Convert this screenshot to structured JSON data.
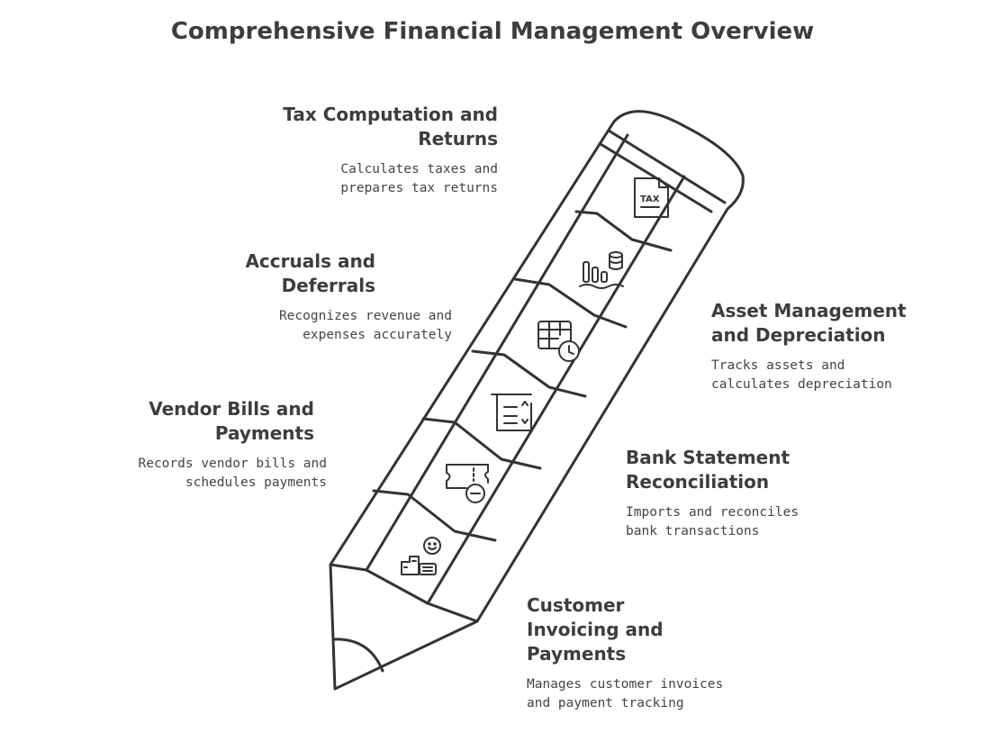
{
  "title": "Comprehensive Financial Management Overview",
  "items": [
    {
      "heading": "Tax Computation and Returns",
      "description": "Calculates taxes and prepares tax returns",
      "icon": "tax-document-icon"
    },
    {
      "heading": "Accruals and Deferrals",
      "description": "Recognizes revenue and expenses accurately",
      "icon": "bar-chart-coins-icon"
    },
    {
      "heading": "Asset Management and Depreciation",
      "description": "Tracks assets and calculates depreciation",
      "icon": "spreadsheet-clock-icon"
    },
    {
      "heading": "Vendor Bills and Payments",
      "description": "Records vendor bills and schedules payments",
      "icon": "bill-checklist-icon"
    },
    {
      "heading": "Bank Statement Reconciliation",
      "description": "Imports and reconciles bank transactions",
      "icon": "ticket-minus-icon"
    },
    {
      "heading": "Customer Invoicing and Payments",
      "description": "Manages customer invoices and payment tracking",
      "icon": "customer-register-icon"
    }
  ]
}
